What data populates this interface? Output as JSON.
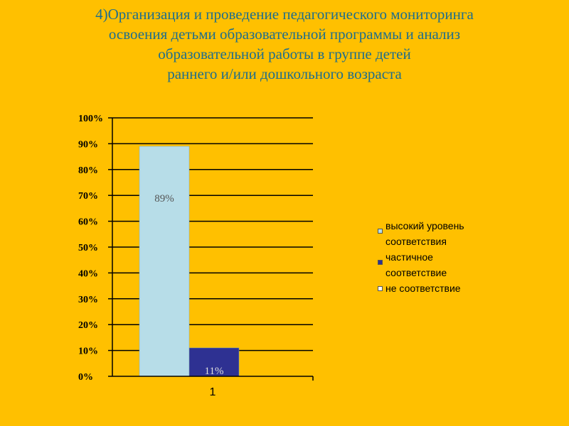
{
  "title": {
    "lines": [
      "4)Организация и проведение педагогического мониторинга",
      "освоения детьми  образовательной программы и анализ",
      "образовательной работы в группе детей",
      "раннего и/или дошкольного возраста"
    ]
  },
  "colors": {
    "background": "#FFC000",
    "title": "#1F6E8C",
    "series_high": "#B7DDE8",
    "series_partial": "#2E3192",
    "series_none": "#FFFFFF",
    "gridline": "#000000"
  },
  "legend": {
    "items": [
      {
        "label_line1": "высокий уровень",
        "label_line2": "соответствия",
        "color": "#B7DDE8"
      },
      {
        "label_line1": "частичное",
        "label_line2": "соответствие",
        "color": "#2E3192"
      },
      {
        "label_line1": "не соответствие",
        "label_line2": "",
        "color": "#FFFFFF"
      }
    ]
  },
  "chart_data": {
    "type": "bar",
    "categories": [
      "1"
    ],
    "series": [
      {
        "name": "высокий уровень соответствия",
        "values": [
          89
        ],
        "data_label": "89%",
        "color": "#B7DDE8"
      },
      {
        "name": "частичное соответствие",
        "values": [
          11
        ],
        "data_label": "11%",
        "color": "#2E3192"
      },
      {
        "name": "не соответствие",
        "values": [
          0
        ],
        "data_label": "",
        "color": "#FFFFFF"
      }
    ],
    "ylim": [
      0,
      100
    ],
    "yticks": [
      "0%",
      "10%",
      "20%",
      "30%",
      "40%",
      "50%",
      "60%",
      "70%",
      "80%",
      "90%",
      "100%"
    ],
    "grid": true,
    "legend_position": "right",
    "xlabel": "",
    "ylabel": ""
  }
}
